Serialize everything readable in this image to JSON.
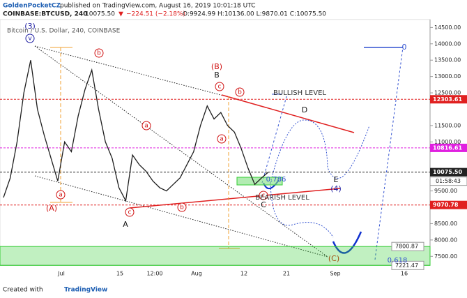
{
  "header": {
    "author": "GoldenPocketCZ",
    "published": "published on TradingView.com, August 16, 2019 10:01:18 UTC",
    "symbol": "COINBASE:BTCUSD, 240",
    "last": "10075.50",
    "arrow": "▼",
    "change": "−224.51 (−2.18%)",
    "ohlc": "O:9924.99 H:10136.00 L:9870.01 C:10075.50"
  },
  "footer": {
    "prefix": "Created with",
    "brand": "TradingView"
  },
  "chart_data": {
    "type": "line",
    "title": "Bitcoin / U.S. Dollar, 240, COINBASE",
    "series": [
      {
        "name": "BTCUSD",
        "color": "#1e1e1e",
        "values": [
          9300,
          9900,
          11000,
          12500,
          13500,
          12000,
          11200,
          10500,
          9800,
          11000,
          10700,
          11800,
          12600,
          13200,
          12000,
          11000,
          10500,
          9600,
          9200,
          10600,
          10300,
          10100,
          9800,
          9600,
          9500,
          9700,
          9900,
          10300,
          10700,
          11500,
          12100,
          11700,
          11900,
          11500,
          11300,
          10800,
          10200,
          9700,
          9900,
          10075.5
        ]
      }
    ],
    "ylim": [
      7250,
      14700
    ],
    "yticks": [
      {
        "value": 14500,
        "label": "14500.00"
      },
      {
        "value": 14000,
        "label": "14000.00"
      },
      {
        "value": 13500,
        "label": "13500.00"
      },
      {
        "value": 13000,
        "label": "13000.00"
      },
      {
        "value": 12500,
        "label": "12500.00"
      },
      {
        "value": 11500,
        "label": "11500.00"
      },
      {
        "value": 11000,
        "label": "11000.00"
      },
      {
        "value": 9500,
        "label": "9500.00"
      },
      {
        "value": 8500,
        "label": "8500.00"
      },
      {
        "value": 8000,
        "label": "8000.00"
      },
      {
        "value": 7500,
        "label": "7500.00"
      }
    ],
    "xticks": [
      "Jul",
      "15",
      "12:00",
      "Aug",
      "12",
      "21",
      "Sep",
      "16"
    ],
    "levels": [
      {
        "value": 12303.61,
        "color": "#e02020",
        "dashed": true
      },
      {
        "value": 10816.61,
        "color": "#e020e0",
        "dashed": true
      },
      {
        "value": {
          "value": 10075.5,
          "label": "10075.50"
        },
        "color": "#222222",
        "dashed": true,
        "countdown": "01:58:43"
      },
      {
        "value": 9070.78,
        "color": "#e02020",
        "dashed": true
      }
    ],
    "zone": {
      "top": 7800.87,
      "bottom": 7221.47,
      "color": "#33cc33"
    },
    "annotations": [
      {
        "text": "(3)",
        "color": "#1a1aa0"
      },
      {
        "text": "v",
        "color": "#1a1aa0",
        "circled": true
      },
      {
        "text": "b",
        "color": "#d01010",
        "circled": true
      },
      {
        "text": "(B)",
        "color": "#d01010"
      },
      {
        "text": "B",
        "color": "#111111"
      },
      {
        "text": "c",
        "color": "#d01010",
        "circled": true
      },
      {
        "text": "b",
        "color": "#d01010",
        "circled": true
      },
      {
        "text": "a",
        "color": "#d01010",
        "circled": true
      },
      {
        "text": "a",
        "color": "#d01010",
        "circled": true
      },
      {
        "text": "(A)",
        "color": "#d01010"
      },
      {
        "text": "a",
        "color": "#d01010",
        "circled": true
      },
      {
        "text": "c",
        "color": "#d01010",
        "circled": true
      },
      {
        "text": "A",
        "color": "#111111"
      },
      {
        "text": "b",
        "color": "#d01010",
        "circled": true
      },
      {
        "text": "c",
        "color": "#d01010",
        "circled": true
      },
      {
        "text": "C",
        "color": "#111111"
      },
      {
        "text": "D",
        "color": "#111111"
      },
      {
        "text": "E",
        "color": "#111111"
      },
      {
        "text": "(4)",
        "color": "#1a1aa0"
      },
      {
        "text": "(C)",
        "color": "#a05010"
      },
      {
        "text": "BULLISH LEVEL",
        "color": "#333333"
      },
      {
        "text": "BEARISH LEVEL",
        "color": "#333333"
      },
      {
        "text": "0.786",
        "color": "#3050d0"
      },
      {
        "text": "0",
        "color": "#3050d0"
      },
      {
        "text": "0.618",
        "color": "#3050d0"
      }
    ]
  }
}
